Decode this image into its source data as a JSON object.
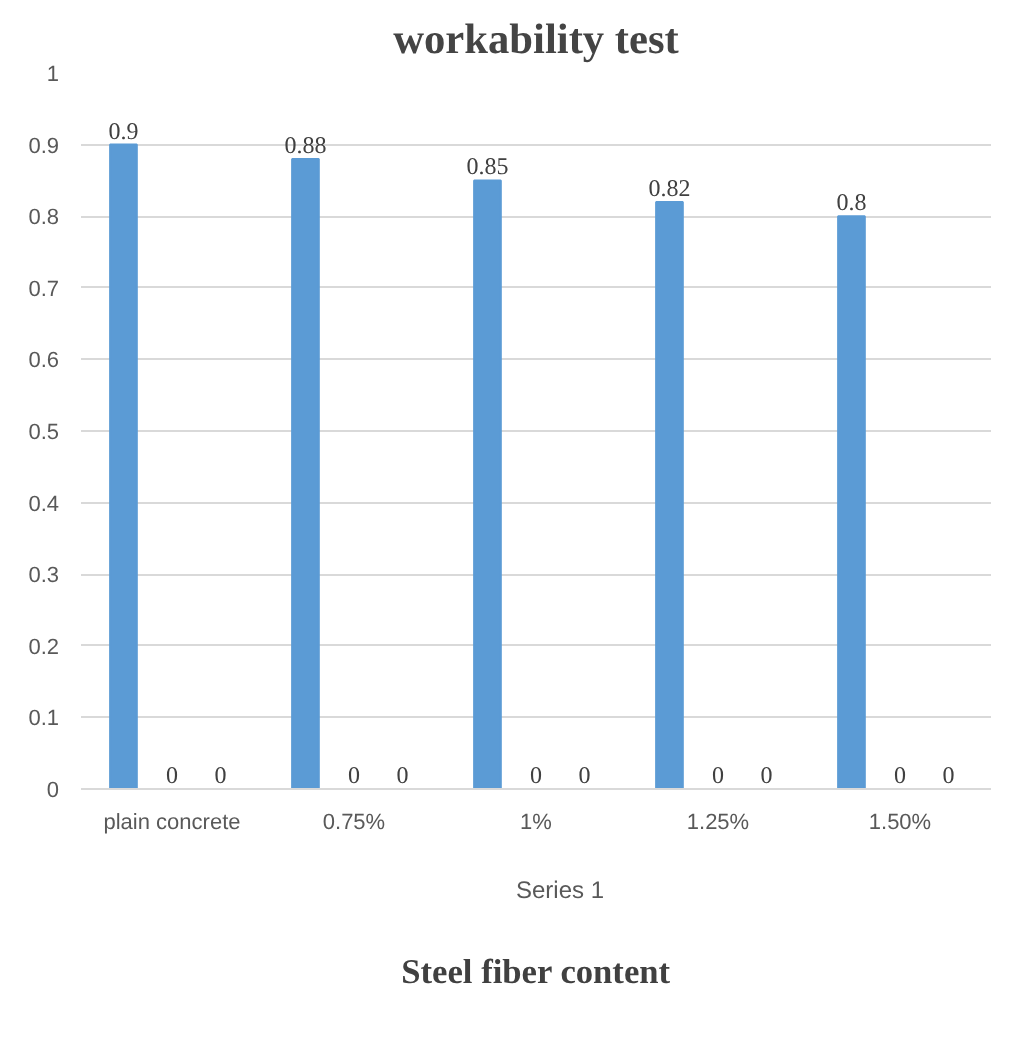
{
  "chart_data": {
    "type": "bar",
    "title": "workability test",
    "xlabel": "Steel fiber content",
    "categories": [
      "plain concrete",
      "0.75%",
      "1%",
      "1.25%",
      "1.50%"
    ],
    "series": [
      {
        "name": "Series 1",
        "color": "#5b9bd5",
        "values": [
          0.9,
          0.88,
          0.85,
          0.82,
          0.8
        ]
      },
      {
        "color": "#5b9bd5",
        "values": [
          0,
          0,
          0,
          0,
          0
        ]
      },
      {
        "color": "#5b9bd5",
        "values": [
          0,
          0,
          0,
          0,
          0
        ]
      }
    ],
    "ylim": [
      0,
      1
    ],
    "yticks": [
      0,
      0.1,
      0.2,
      0.3,
      0.4,
      0.5,
      0.6,
      0.7,
      0.8,
      0.9,
      1
    ],
    "grid": "y",
    "legend": "bottom",
    "data_labels": true
  }
}
